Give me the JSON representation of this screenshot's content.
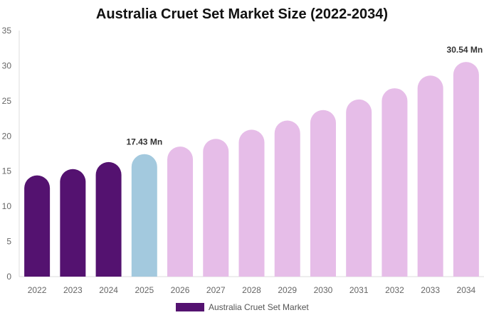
{
  "chart_data": {
    "type": "bar",
    "title": "Australia Cruet Set Market Size (2022-2034)",
    "categories": [
      "2022",
      "2023",
      "2024",
      "2025",
      "2026",
      "2027",
      "2028",
      "2029",
      "2030",
      "2031",
      "2032",
      "2033",
      "2034"
    ],
    "series": [
      {
        "name": "Australia Cruet Set Market",
        "values": [
          14.4,
          15.3,
          16.3,
          17.43,
          18.5,
          19.6,
          20.9,
          22.2,
          23.7,
          25.2,
          26.8,
          28.6,
          30.54
        ]
      }
    ],
    "data_labels": {
      "2025": "17.43 Mn",
      "2034": "30.54 Mn"
    },
    "ylim": [
      0,
      35
    ],
    "yticks": [
      0,
      5,
      10,
      15,
      20,
      25,
      30,
      35
    ],
    "grid": false,
    "legend_position": "bottom",
    "colors": {
      "historical": "#541270",
      "base_year": "#a3c9de",
      "forecast": "#e6bde8"
    }
  }
}
